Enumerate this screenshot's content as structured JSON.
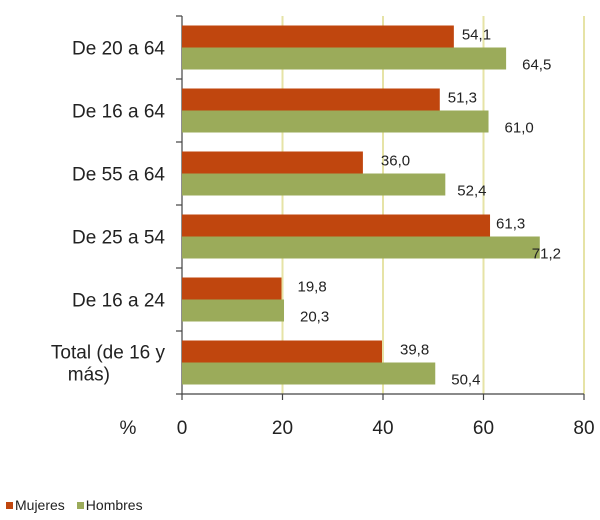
{
  "chart_data": {
    "type": "bar",
    "orientation": "horizontal",
    "categories": [
      "De 20 a 64",
      "De 16 a 64",
      "De 55 a 64",
      "De 25 a 54",
      "De 16 a 24",
      "Total (de 16 y más)"
    ],
    "category_lines": [
      [
        "De 20 a 64"
      ],
      [
        "De 16 a 64"
      ],
      [
        "De 55 a 64"
      ],
      [
        "De 25 a 54"
      ],
      [
        "De 16 a 24"
      ],
      [
        "Total (de 16 y",
        "más)"
      ]
    ],
    "series": [
      {
        "name": "Mujeres",
        "color": "#c0460e",
        "values": [
          54.1,
          51.3,
          36.0,
          61.3,
          19.8,
          39.8
        ],
        "labels": [
          "54,1",
          "51,3",
          "36,0",
          "61,3",
          "19,8",
          "39,8"
        ]
      },
      {
        "name": "Hombres",
        "color": "#9bab5a",
        "values": [
          64.5,
          61.0,
          52.4,
          71.2,
          20.3,
          50.4
        ],
        "labels": [
          "64,5",
          "61,0",
          "52,4",
          "71,2",
          "20,3",
          "50,4"
        ]
      }
    ],
    "xlabel": "%",
    "xlim": [
      0,
      80
    ],
    "xticks": [
      0,
      20,
      40,
      60,
      80
    ],
    "grid": true,
    "grid_color": "#e6e3a6",
    "legend_position": "bottom-left"
  }
}
